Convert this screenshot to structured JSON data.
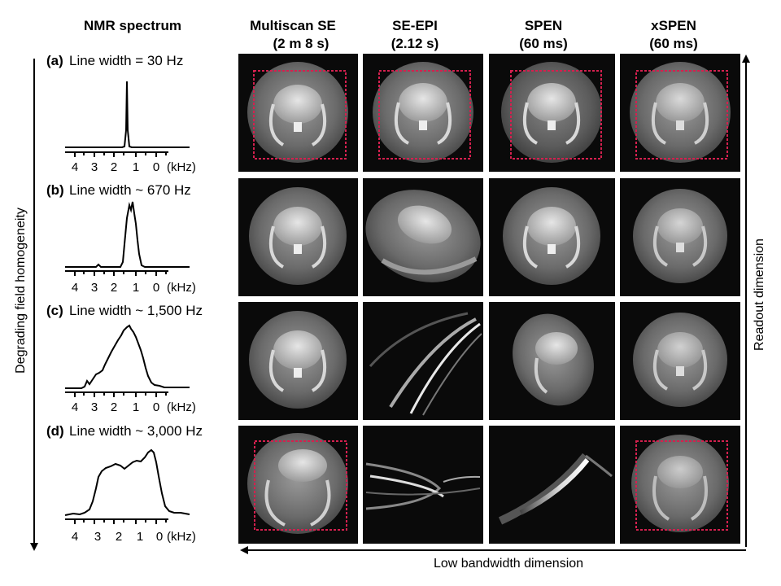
{
  "header": {
    "nmr_title": "NMR spectrum",
    "columns": [
      {
        "line1": "Multiscan SE",
        "line2": "(2 m 8 s)"
      },
      {
        "line1": "SE-EPI",
        "line2": "(2.12 s)"
      },
      {
        "line1": "SPEN",
        "line2": "(60 ms)"
      },
      {
        "line1": "xSPEN",
        "line2": "(60 ms)"
      }
    ]
  },
  "rows": [
    {
      "tag": "(a)",
      "label": "Line width = 30 Hz"
    },
    {
      "tag": "(b)",
      "label": "Line width ~ 670 Hz"
    },
    {
      "tag": "(c)",
      "label": "Line width ~ 1,500 Hz"
    },
    {
      "tag": "(d)",
      "label": "Line width ~ 3,000 Hz"
    }
  ],
  "spectrum_axis": {
    "ticks": [
      "4",
      "3",
      "2",
      "1",
      "0"
    ],
    "unit": "(kHz)"
  },
  "axes": {
    "left": "Degrading field homogeneity",
    "right": "Readout dimension",
    "bottom": "Low bandwidth dimension"
  },
  "colors": {
    "roi_box": "#d4204f",
    "panel_bg": "#0a0a0a",
    "brain": "#bdbdbd"
  }
}
